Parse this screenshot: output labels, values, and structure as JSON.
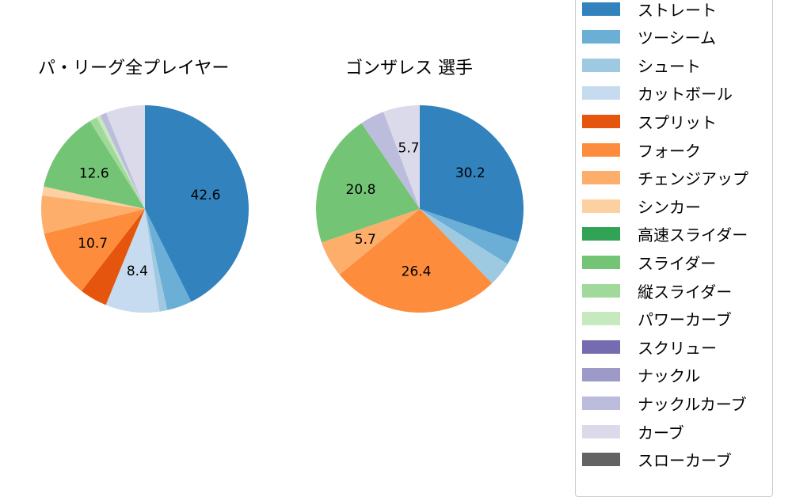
{
  "chart_data": [
    {
      "type": "pie",
      "title": "パ・リーグ全プレイヤー",
      "start_angle": "12 o'clock, clockwise",
      "slices": [
        {
          "label": "ストレート",
          "value": 42.6,
          "color": "#3182bd",
          "shown_label": "42.6"
        },
        {
          "label": "ツーシーム",
          "value": 3.9,
          "color": "#6baed6",
          "shown_label": ""
        },
        {
          "label": "シュート",
          "value": 1.2,
          "color": "#9ecae1",
          "shown_label": ""
        },
        {
          "label": "カットボール",
          "value": 8.4,
          "color": "#c6dbef",
          "shown_label": "8.4"
        },
        {
          "label": "スプリット",
          "value": 4.3,
          "color": "#e6550d",
          "shown_label": ""
        },
        {
          "label": "フォーク",
          "value": 10.7,
          "color": "#fd8d3c",
          "shown_label": "10.7"
        },
        {
          "label": "チェンジアップ",
          "value": 5.9,
          "color": "#fdae6b",
          "shown_label": ""
        },
        {
          "label": "シンカー",
          "value": 1.4,
          "color": "#fdd0a2",
          "shown_label": ""
        },
        {
          "label": "スライダー",
          "value": 12.6,
          "color": "#74c476",
          "shown_label": "12.6"
        },
        {
          "label": "縦スライダー",
          "value": 1.2,
          "color": "#a1d99b",
          "shown_label": ""
        },
        {
          "label": "パワーカーブ",
          "value": 0.6,
          "color": "#c7e9c0",
          "shown_label": ""
        },
        {
          "label": "ナックルカーブ",
          "value": 1.0,
          "color": "#bcbddc",
          "shown_label": ""
        },
        {
          "label": "カーブ",
          "value": 6.1,
          "color": "#dadaeb",
          "shown_label": ""
        }
      ]
    },
    {
      "type": "pie",
      "title": "ゴンザレス  選手",
      "start_angle": "12 o'clock, clockwise",
      "slices": [
        {
          "label": "ストレート",
          "value": 30.2,
          "color": "#3182bd",
          "shown_label": "30.2"
        },
        {
          "label": "ツーシーム",
          "value": 3.8,
          "color": "#6baed6",
          "shown_label": ""
        },
        {
          "label": "シュート",
          "value": 3.8,
          "color": "#9ecae1",
          "shown_label": ""
        },
        {
          "label": "フォーク",
          "value": 26.4,
          "color": "#fd8d3c",
          "shown_label": "26.4"
        },
        {
          "label": "チェンジアップ",
          "value": 5.7,
          "color": "#fdae6b",
          "shown_label": "5.7"
        },
        {
          "label": "スライダー",
          "value": 20.8,
          "color": "#74c476",
          "shown_label": "20.8"
        },
        {
          "label": "ナックルカーブ",
          "value": 3.8,
          "color": "#bcbddc",
          "shown_label": ""
        },
        {
          "label": "カーブ",
          "value": 5.7,
          "color": "#dadaeb",
          "shown_label": "5.7"
        }
      ]
    }
  ],
  "legend": {
    "items": [
      {
        "label": "ストレート",
        "color": "#3182bd"
      },
      {
        "label": "ツーシーム",
        "color": "#6baed6"
      },
      {
        "label": "シュート",
        "color": "#9ecae1"
      },
      {
        "label": "カットボール",
        "color": "#c6dbef"
      },
      {
        "label": "スプリット",
        "color": "#e6550d"
      },
      {
        "label": "フォーク",
        "color": "#fd8d3c"
      },
      {
        "label": "チェンジアップ",
        "color": "#fdae6b"
      },
      {
        "label": "シンカー",
        "color": "#fdd0a2"
      },
      {
        "label": "高速スライダー",
        "color": "#31a354"
      },
      {
        "label": "スライダー",
        "color": "#74c476"
      },
      {
        "label": "縦スライダー",
        "color": "#a1d99b"
      },
      {
        "label": "パワーカーブ",
        "color": "#c7e9c0"
      },
      {
        "label": "スクリュー",
        "color": "#756bb1"
      },
      {
        "label": "ナックル",
        "color": "#9e9ac8"
      },
      {
        "label": "ナックルカーブ",
        "color": "#bcbddc"
      },
      {
        "label": "カーブ",
        "color": "#dadaeb"
      },
      {
        "label": "スローカーブ",
        "color": "#636363"
      }
    ]
  }
}
